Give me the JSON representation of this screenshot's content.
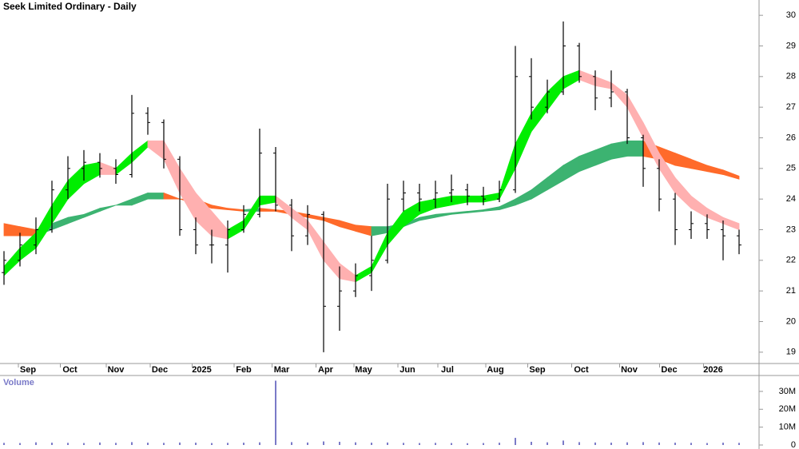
{
  "chart_data": {
    "type": "candlestick",
    "title": "Seek Limited Ordinary - Daily",
    "color": "#000000",
    "x": [
      0,
      8,
      16,
      24,
      32,
      40,
      48,
      56,
      64,
      72,
      80,
      88,
      96,
      104,
      112,
      120,
      128,
      136,
      144,
      152,
      160,
      168,
      176,
      184,
      192,
      200,
      208,
      216,
      224,
      232,
      240,
      248,
      256,
      264,
      272,
      280,
      288,
      296,
      304,
      312,
      320,
      328,
      336,
      344,
      352,
      360,
      368
    ],
    "open": [
      21.6,
      22.0,
      22.5,
      23.0,
      24.3,
      25.0,
      25.2,
      25.0,
      24.8,
      26.8,
      26.5,
      25.3,
      23.0,
      22.5,
      22.5,
      23.0,
      23.5,
      25.5,
      23.8,
      22.8,
      23.5,
      20.5,
      21.0,
      21.5,
      22.0,
      24.0,
      24.2,
      24.0,
      24.2,
      24.3,
      24.1,
      24.0,
      24.3,
      28.0,
      27.0,
      27.5,
      29.0,
      28.0,
      27.3,
      27.5,
      26.0,
      25.0,
      24.0,
      23.0,
      23.2,
      23.0,
      22.8
    ],
    "high": [
      22.3,
      22.9,
      23.4,
      24.6,
      25.4,
      25.6,
      25.5,
      25.3,
      27.4,
      27.0,
      26.6,
      25.4,
      23.4,
      23.0,
      23.3,
      23.8,
      26.3,
      25.7,
      24.0,
      23.8,
      23.6,
      21.8,
      21.9,
      22.8,
      24.5,
      24.6,
      24.5,
      24.6,
      24.8,
      24.5,
      24.4,
      24.6,
      29.0,
      28.6,
      27.9,
      29.8,
      29.1,
      28.2,
      28.2,
      27.6,
      26.1,
      25.3,
      24.2,
      23.6,
      23.5,
      23.3,
      23.0
    ],
    "low": [
      21.2,
      21.8,
      22.2,
      22.9,
      24.0,
      24.6,
      24.7,
      24.5,
      24.7,
      26.1,
      25.0,
      22.8,
      22.2,
      21.9,
      21.6,
      22.9,
      23.4,
      23.6,
      22.3,
      22.5,
      19.0,
      19.7,
      20.8,
      21.0,
      21.9,
      23.6,
      23.6,
      23.7,
      23.9,
      23.8,
      23.8,
      23.9,
      24.2,
      26.6,
      26.8,
      27.4,
      27.8,
      26.9,
      27.0,
      25.8,
      24.4,
      23.6,
      22.5,
      22.7,
      22.7,
      22.0,
      22.2
    ],
    "close": [
      22.0,
      22.5,
      23.0,
      24.3,
      25.0,
      25.2,
      25.0,
      24.8,
      26.8,
      26.5,
      25.3,
      23.0,
      22.5,
      22.5,
      23.0,
      23.5,
      25.5,
      23.8,
      22.8,
      23.5,
      20.5,
      21.0,
      21.5,
      22.0,
      24.0,
      24.2,
      24.0,
      24.2,
      24.3,
      24.1,
      24.0,
      24.3,
      28.0,
      27.0,
      27.5,
      29.0,
      28.0,
      27.3,
      27.5,
      26.0,
      25.0,
      24.0,
      23.0,
      23.2,
      23.0,
      22.8,
      22.5
    ],
    "ribbons": [
      {
        "upper": [
          23.2,
          23.1,
          23.0,
          23.2,
          23.4,
          23.5,
          23.7,
          23.8,
          24.0,
          24.2,
          24.2,
          24.0,
          24.0,
          23.8,
          23.7,
          23.65,
          23.7,
          23.65,
          23.6,
          23.5,
          23.4,
          23.3,
          23.15,
          23.1,
          23.1,
          23.2,
          23.4,
          23.5,
          23.55,
          23.6,
          23.65,
          23.75,
          24.0,
          24.3,
          24.7,
          25.1,
          25.4,
          25.6,
          25.8,
          25.9,
          25.9,
          25.7,
          25.5,
          25.3,
          25.1,
          24.95,
          24.75
        ],
        "lower": [
          22.8,
          22.8,
          22.8,
          23.0,
          23.2,
          23.4,
          23.6,
          23.8,
          23.8,
          24.0,
          24.0,
          24.0,
          23.85,
          23.7,
          23.65,
          23.6,
          23.6,
          23.6,
          23.5,
          23.4,
          23.3,
          23.1,
          22.95,
          22.8,
          22.9,
          23.1,
          23.3,
          23.4,
          23.5,
          23.55,
          23.6,
          23.65,
          23.8,
          24.0,
          24.3,
          24.6,
          24.9,
          25.1,
          25.3,
          25.4,
          25.4,
          25.3,
          25.1,
          25.0,
          24.9,
          24.8,
          24.65
        ],
        "rising_color": "#3cb371",
        "falling_color": "#ff6a2a"
      },
      {
        "upper": [
          21.8,
          22.4,
          22.9,
          23.8,
          24.6,
          25.1,
          25.2,
          25.0,
          25.5,
          25.9,
          25.9,
          25.0,
          24.2,
          23.6,
          23.0,
          23.3,
          24.1,
          24.1,
          23.7,
          23.3,
          22.6,
          21.9,
          21.5,
          21.8,
          22.9,
          23.6,
          23.9,
          24.0,
          24.1,
          24.1,
          24.1,
          24.2,
          25.8,
          26.8,
          27.5,
          28.0,
          28.2,
          28.0,
          27.8,
          27.4,
          26.5,
          25.5,
          24.7,
          24.1,
          23.7,
          23.4,
          23.2
        ],
        "lower": [
          21.5,
          22.0,
          22.4,
          23.2,
          24.0,
          24.5,
          24.8,
          24.8,
          25.2,
          25.7,
          25.3,
          24.2,
          23.3,
          22.8,
          22.7,
          23.0,
          23.8,
          23.9,
          23.4,
          23.0,
          22.0,
          21.4,
          21.3,
          21.6,
          22.5,
          23.1,
          23.5,
          23.7,
          23.8,
          23.9,
          23.9,
          24.0,
          25.0,
          26.2,
          26.9,
          27.6,
          27.9,
          27.7,
          27.6,
          27.0,
          26.0,
          25.0,
          24.2,
          23.7,
          23.4,
          23.2,
          23.0
        ],
        "rising_color": "#00ee00",
        "falling_color": "#ffb0b0"
      }
    ],
    "xlim": [
      -2,
      378
    ],
    "xticks": [
      {
        "value": 12,
        "label": "Sep"
      },
      {
        "value": 33,
        "label": "Oct"
      },
      {
        "value": 56,
        "label": "Nov"
      },
      {
        "value": 78,
        "label": "Dec"
      },
      {
        "value": 99,
        "label": "2025"
      },
      {
        "value": 120,
        "label": "Feb"
      },
      {
        "value": 139,
        "label": "Mar"
      },
      {
        "value": 161,
        "label": "Apr"
      },
      {
        "value": 180,
        "label": "May"
      },
      {
        "value": 202,
        "label": "Jun"
      },
      {
        "value": 222,
        "label": "Jul"
      },
      {
        "value": 246,
        "label": "Aug"
      },
      {
        "value": 267,
        "label": "Sep"
      },
      {
        "value": 289,
        "label": "Oct"
      },
      {
        "value": 313,
        "label": "Nov"
      },
      {
        "value": 333,
        "label": "Dec"
      },
      {
        "value": 355,
        "label": "2026"
      }
    ],
    "ylim": [
      18.63,
      30.5
    ],
    "yticks": [
      19,
      20,
      21,
      22,
      23,
      24,
      25,
      26,
      27,
      28,
      29,
      30
    ],
    "volume": {
      "title": "Volume",
      "color": "#7a7ac8",
      "values": [
        1200000,
        1100000,
        1500000,
        1300000,
        1200000,
        1100000,
        1400000,
        1200000,
        1600000,
        1300000,
        1200000,
        1400000,
        1300000,
        1100000,
        1200000,
        1300000,
        1500000,
        36000000,
        1600000,
        1400000,
        2000000,
        1800000,
        1500000,
        1300000,
        1400000,
        1200000,
        1100000,
        1200000,
        1100000,
        1000000,
        1100000,
        1300000,
        4000000,
        1800000,
        1500000,
        2500000,
        1600000,
        1400000,
        1300000,
        1500000,
        1600000,
        1400000,
        1300000,
        1200000,
        1100000,
        1300000,
        1200000
      ],
      "ylim": [
        0,
        38000000
      ],
      "yticks": [
        0,
        {
          "value": 10000000,
          "label": "10M"
        },
        {
          "value": 20000000,
          "label": "20M"
        },
        {
          "value": 30000000,
          "label": "30M"
        }
      ]
    }
  }
}
